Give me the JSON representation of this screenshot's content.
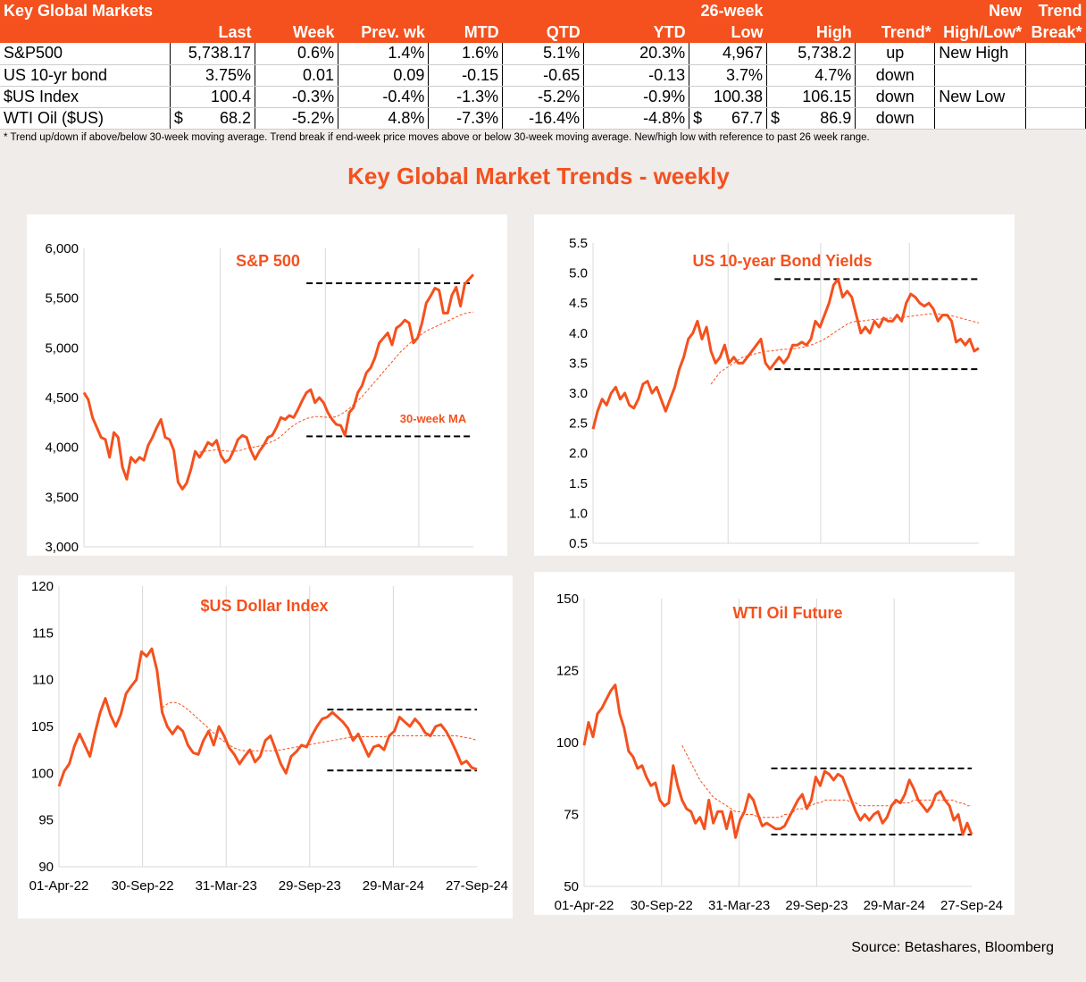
{
  "table": {
    "title": "Key Global Markets",
    "header_top": {
      "low": "26-week",
      "newhl": "New",
      "brk": "Trend"
    },
    "header_bottom": [
      "Last",
      "Week",
      "Prev. wk",
      "MTD",
      "QTD",
      "YTD",
      "Low",
      "High",
      "Trend*",
      "High/Low*",
      "Break*"
    ],
    "rows": [
      {
        "name": "S&P500",
        "last_cur": "",
        "last": "5,738.17",
        "week": "0.6%",
        "prev": "1.4%",
        "mtd": "1.6%",
        "qtd": "5.1%",
        "ytd": "20.3%",
        "low_cur": "",
        "low": "4,967",
        "high_cur": "",
        "high": "5,738.2",
        "trend": "up",
        "newhl": "New High",
        "brk": ""
      },
      {
        "name": "US 10-yr bond",
        "last_cur": "",
        "last": "3.75%",
        "week": "0.01",
        "prev": "0.09",
        "mtd": "-0.15",
        "qtd": "-0.65",
        "ytd": "-0.13",
        "low_cur": "",
        "low": "3.7%",
        "high_cur": "",
        "high": "4.7%",
        "trend": "down",
        "newhl": "",
        "brk": ""
      },
      {
        "name": "$US Index",
        "last_cur": "",
        "last": "100.4",
        "week": "-0.3%",
        "prev": "-0.4%",
        "mtd": "-1.3%",
        "qtd": "-5.2%",
        "ytd": "-0.9%",
        "low_cur": "",
        "low": "100.38",
        "high_cur": "",
        "high": "106.15",
        "trend": "down",
        "newhl": "New Low",
        "brk": ""
      },
      {
        "name": "WTI Oil ($US)",
        "last_cur": "$",
        "last": "68.2",
        "week": "-5.2%",
        "prev": "4.8%",
        "mtd": "-7.3%",
        "qtd": "-16.4%",
        "ytd": "-4.8%",
        "low_cur": "$",
        "low": "67.7",
        "high_cur": "$",
        "high": "86.9",
        "trend": "down",
        "newhl": "",
        "brk": ""
      }
    ]
  },
  "footnote": "*  Trend up/down if above/below 30-week moving average. Trend break if end-week price moves above or below 30-week moving average.  New/high low with reference to past 26 week range.",
  "main_title": "Key Global Market Trends - weekly",
  "source": "Source:  Betashares, Bloomberg",
  "colors": {
    "accent": "#f4511e",
    "line": "#f4511e",
    "ref_line": "#000000",
    "grid": "#d9d9d9"
  },
  "chart_data": [
    {
      "type": "line",
      "title": "S&P 500",
      "ylim": [
        3000,
        6000
      ],
      "yticks": [
        "3,000",
        "3,500",
        "4,000",
        "4,500",
        "5,000",
        "5,500",
        "6,000"
      ],
      "xticks": [],
      "annotation": "30-week MA",
      "hlines": [
        {
          "y": 5650,
          "x_from": 52
        },
        {
          "y": 4110,
          "x_from": 52
        }
      ],
      "series": [
        {
          "name": "",
          "style": "solid",
          "values": [
            4550,
            4480,
            4300,
            4200,
            4100,
            4080,
            3900,
            4150,
            4100,
            3800,
            3680,
            3900,
            3850,
            3900,
            3870,
            4020,
            4100,
            4200,
            4280,
            4100,
            4080,
            3970,
            3650,
            3580,
            3640,
            3780,
            3960,
            3900,
            3970,
            4050,
            4020,
            4070,
            3920,
            3850,
            3880,
            3970,
            4080,
            4120,
            4100,
            3970,
            3880,
            3960,
            4020,
            4100,
            4120,
            4200,
            4300,
            4280,
            4320,
            4300,
            4380,
            4470,
            4550,
            4580,
            4450,
            4500,
            4450,
            4350,
            4280,
            4230,
            4220,
            4120,
            4350,
            4400,
            4550,
            4620,
            4750,
            4800,
            4900,
            5050,
            5100,
            5150,
            5030,
            5200,
            5230,
            5280,
            5250,
            5050,
            5100,
            5250,
            5450,
            5520,
            5600,
            5580,
            5350,
            5350,
            5530,
            5610,
            5420,
            5640,
            5690,
            5738
          ]
        },
        {
          "name": "30-week MA",
          "style": "dashed",
          "values": [
            null,
            null,
            null,
            null,
            null,
            null,
            null,
            null,
            null,
            null,
            null,
            null,
            null,
            null,
            null,
            null,
            null,
            null,
            null,
            null,
            null,
            null,
            null,
            null,
            null,
            null,
            3940,
            3950,
            3960,
            3965,
            3970,
            3975,
            3970,
            3965,
            3960,
            3960,
            3965,
            3975,
            3990,
            4000,
            4005,
            4015,
            4025,
            4040,
            4060,
            4080,
            4110,
            4150,
            4190,
            4220,
            4250,
            4270,
            4290,
            4300,
            4310,
            4310,
            4305,
            4300,
            4300,
            4310,
            4330,
            4360,
            4390,
            4430,
            4470,
            4510,
            4560,
            4610,
            4660,
            4710,
            4760,
            4810,
            4860,
            4910,
            4960,
            5000,
            5040,
            5080,
            5110,
            5140,
            5170,
            5190,
            5210,
            5230,
            5250,
            5270,
            5290,
            5310,
            5330,
            5345,
            5355,
            5360
          ]
        }
      ]
    },
    {
      "type": "line",
      "title": "US 10-year Bond Yields",
      "ylim": [
        0.5,
        5.5
      ],
      "yticks": [
        "0.5",
        "1.0",
        "1.5",
        "2.0",
        "2.5",
        "3.0",
        "3.5",
        "4.0",
        "4.5",
        "5.0",
        "5.5"
      ],
      "xticks": [],
      "hlines": [
        {
          "y": 4.9,
          "x_from": 40
        },
        {
          "y": 3.4,
          "x_from": 40
        }
      ],
      "series": [
        {
          "name": "",
          "style": "solid",
          "values": [
            2.4,
            2.7,
            2.9,
            2.8,
            3.0,
            3.1,
            2.9,
            3.0,
            2.8,
            2.75,
            2.9,
            3.15,
            3.2,
            3.0,
            3.1,
            2.9,
            2.7,
            2.9,
            3.1,
            3.4,
            3.6,
            3.9,
            4.0,
            4.2,
            3.9,
            4.1,
            3.7,
            3.5,
            3.6,
            3.8,
            3.5,
            3.6,
            3.5,
            3.5,
            3.6,
            3.7,
            3.8,
            3.9,
            3.5,
            3.4,
            3.5,
            3.6,
            3.5,
            3.6,
            3.8,
            3.8,
            3.85,
            3.8,
            3.9,
            4.2,
            4.1,
            4.3,
            4.5,
            4.8,
            4.9,
            4.6,
            4.7,
            4.6,
            4.3,
            4.0,
            4.1,
            4.0,
            4.2,
            4.1,
            4.25,
            4.2,
            4.2,
            4.3,
            4.2,
            4.5,
            4.65,
            4.6,
            4.5,
            4.45,
            4.5,
            4.4,
            4.2,
            4.3,
            4.3,
            4.2,
            3.85,
            3.9,
            3.8,
            3.9,
            3.7,
            3.75
          ]
        },
        {
          "name": "30-week MA",
          "style": "dashed",
          "values": [
            null,
            null,
            null,
            null,
            null,
            null,
            null,
            null,
            null,
            null,
            null,
            null,
            null,
            null,
            null,
            null,
            null,
            null,
            null,
            null,
            null,
            null,
            null,
            null,
            null,
            null,
            3.15,
            3.25,
            3.35,
            3.4,
            3.45,
            3.5,
            3.55,
            3.6,
            3.62,
            3.64,
            3.66,
            3.68,
            3.7,
            3.7,
            3.71,
            3.72,
            3.73,
            3.73,
            3.74,
            3.75,
            3.76,
            3.78,
            3.8,
            3.83,
            3.86,
            3.9,
            3.95,
            4.0,
            4.05,
            4.1,
            4.15,
            4.18,
            4.2,
            4.2,
            4.21,
            4.22,
            4.23,
            4.23,
            4.24,
            4.25,
            4.25,
            4.25,
            4.26,
            4.27,
            4.28,
            4.29,
            4.3,
            4.31,
            4.32,
            4.32,
            4.32,
            4.31,
            4.3,
            4.29,
            4.27,
            4.25,
            4.23,
            4.21,
            4.19,
            4.17
          ]
        }
      ]
    },
    {
      "type": "line",
      "title": "$US Dollar Index",
      "ylim": [
        90,
        120
      ],
      "yticks": [
        "90",
        "95",
        "100",
        "105",
        "110",
        "115",
        "120"
      ],
      "xticks": [
        "01-Apr-22",
        "30-Sep-22",
        "31-Mar-23",
        "29-Sep-23",
        "29-Mar-24",
        "27-Sep-24"
      ],
      "hlines": [
        {
          "y": 106.8,
          "x_from": 52
        },
        {
          "y": 100.3,
          "x_from": 52
        }
      ],
      "series": [
        {
          "name": "",
          "style": "solid",
          "values": [
            98.6,
            100.2,
            101.0,
            102.9,
            104.2,
            103.0,
            101.8,
            104.3,
            106.5,
            108.0,
            106.2,
            105.0,
            106.3,
            108.5,
            109.3,
            110.0,
            113.0,
            112.5,
            113.3,
            111.0,
            106.5,
            105.0,
            104.2,
            105.0,
            104.5,
            103.0,
            102.2,
            102.0,
            103.5,
            104.5,
            103.0,
            105.0,
            104.0,
            102.7,
            102.0,
            101.0,
            101.8,
            102.5,
            101.2,
            101.8,
            103.5,
            104.0,
            102.5,
            101.0,
            100.0,
            101.8,
            102.3,
            103.0,
            102.8,
            104.0,
            105.0,
            105.8,
            106.0,
            106.5,
            106.0,
            105.5,
            104.8,
            103.5,
            104.2,
            103.0,
            101.8,
            102.8,
            103.0,
            102.5,
            104.0,
            104.5,
            106.0,
            105.5,
            105.0,
            105.8,
            105.2,
            104.3,
            104.0,
            105.0,
            105.2,
            104.5,
            103.5,
            102.3,
            101.0,
            101.3,
            100.6,
            100.4
          ]
        },
        {
          "name": "30-week MA",
          "style": "dashed",
          "values": [
            null,
            null,
            null,
            null,
            null,
            null,
            null,
            null,
            null,
            null,
            null,
            null,
            null,
            null,
            null,
            null,
            null,
            null,
            null,
            null,
            107.0,
            107.4,
            107.6,
            107.5,
            107.2,
            106.8,
            106.3,
            105.8,
            105.3,
            104.8,
            104.3,
            103.8,
            103.4,
            103.0,
            102.7,
            102.5,
            102.4,
            102.4,
            102.4,
            102.4,
            102.4,
            102.4,
            102.4,
            102.5,
            102.6,
            102.7,
            102.8,
            102.9,
            103.0,
            103.1,
            103.2,
            103.3,
            103.4,
            103.5,
            103.6,
            103.7,
            103.8,
            103.9,
            103.9,
            103.9,
            103.9,
            103.9,
            103.9,
            103.9,
            104.0,
            104.0,
            104.0,
            104.0,
            104.0,
            104.0,
            104.0,
            104.0,
            104.0,
            104.0,
            104.0,
            104.0,
            104.0,
            104.0,
            103.9,
            103.8,
            103.7,
            103.5
          ]
        }
      ]
    },
    {
      "type": "line",
      "title": "WTI Oil Future",
      "ylim": [
        50,
        150
      ],
      "yticks": [
        "50",
        "75",
        "100",
        "125",
        "150"
      ],
      "xticks": [
        "01-Apr-22",
        "30-Sep-22",
        "31-Mar-23",
        "29-Sep-23",
        "29-Mar-24",
        "27-Sep-24"
      ],
      "hlines": [
        {
          "y": 91,
          "x_from": 42
        },
        {
          "y": 68,
          "x_from": 42
        }
      ],
      "series": [
        {
          "name": "",
          "style": "solid",
          "values": [
            99,
            107,
            102,
            110,
            112,
            115,
            118,
            120,
            110,
            105,
            97,
            95,
            91,
            92,
            88,
            85,
            86,
            80,
            78,
            79,
            92,
            85,
            80,
            77,
            76,
            72,
            74,
            70,
            80,
            72,
            76,
            76,
            70,
            76,
            67,
            73,
            76,
            82,
            80,
            75,
            71,
            72,
            71,
            70,
            70,
            71,
            74,
            77,
            80,
            82,
            77,
            80,
            88,
            85,
            90,
            89,
            87,
            89,
            88,
            84,
            80,
            76,
            73,
            75,
            73,
            75,
            76,
            72,
            74,
            78,
            80,
            79,
            82,
            87,
            84,
            80,
            78,
            76,
            78,
            82,
            83,
            80,
            78,
            73,
            75,
            68,
            72,
            68
          ]
        },
        {
          "name": "30-week MA",
          "style": "dashed",
          "values": [
            null,
            null,
            null,
            null,
            null,
            null,
            null,
            null,
            null,
            null,
            null,
            null,
            null,
            null,
            null,
            null,
            null,
            null,
            null,
            null,
            null,
            null,
            99,
            96,
            93,
            90,
            87,
            85,
            83,
            81,
            80,
            79,
            78,
            77,
            76,
            76,
            75,
            75,
            75,
            74,
            74,
            74,
            74,
            74,
            74,
            75,
            75,
            76,
            77,
            77,
            78,
            78,
            79,
            79,
            80,
            80,
            80,
            80,
            80,
            80,
            79,
            79,
            78,
            78,
            78,
            78,
            78,
            78,
            78,
            78,
            79,
            79,
            79,
            79,
            80,
            80,
            80,
            80,
            80,
            80,
            80,
            80,
            80,
            80,
            79,
            79,
            78,
            78
          ]
        }
      ]
    }
  ]
}
